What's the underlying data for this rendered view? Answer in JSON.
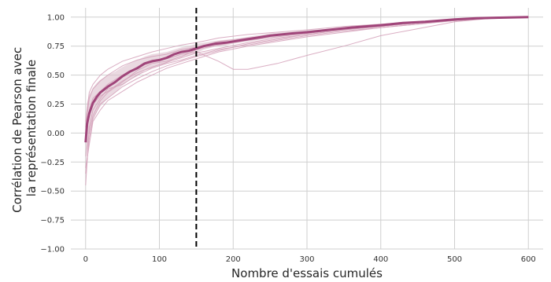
{
  "chart_data": {
    "type": "line",
    "title": "",
    "xlabel": "Nombre d'essais cumulés",
    "ylabel_lines": [
      "Corrélation de Pearson avec",
      "la représentation finale"
    ],
    "xlim": [
      -20,
      620
    ],
    "ylim": [
      -1.0,
      1.08
    ],
    "x_ticks": [
      0,
      100,
      200,
      300,
      400,
      500,
      600
    ],
    "x_tick_labels": [
      "0",
      "100",
      "200",
      "300",
      "400",
      "500",
      "600"
    ],
    "y_ticks": [
      1.0,
      0.75,
      0.5,
      0.25,
      0.0,
      -0.25,
      -0.5,
      -0.75,
      -1.0
    ],
    "y_tick_labels": [
      "1.00",
      "0.75",
      "0.50",
      "0.25",
      "0.00",
      "−0.25",
      "−0.50",
      "−0.75",
      "−1.00"
    ],
    "grid": true,
    "vline": {
      "x": 150,
      "style": "dashed",
      "color": "#000000"
    },
    "mean_color": "#a0457a",
    "individual_color": "#d4a0b8",
    "band_color": "#dcc0cd",
    "series": [
      {
        "role": "mean",
        "x": [
          0,
          2,
          5,
          10,
          15,
          20,
          30,
          40,
          50,
          60,
          70,
          80,
          90,
          100,
          110,
          120,
          130,
          140,
          150,
          160,
          175,
          190,
          200,
          220,
          250,
          280,
          300,
          330,
          360,
          400,
          430,
          460,
          500,
          530,
          560,
          600
        ],
        "y": [
          -0.08,
          0.08,
          0.17,
          0.26,
          0.31,
          0.35,
          0.4,
          0.44,
          0.49,
          0.53,
          0.56,
          0.6,
          0.62,
          0.63,
          0.65,
          0.68,
          0.7,
          0.71,
          0.73,
          0.75,
          0.77,
          0.78,
          0.79,
          0.81,
          0.84,
          0.86,
          0.87,
          0.89,
          0.91,
          0.93,
          0.95,
          0.96,
          0.98,
          0.99,
          0.995,
          1.0
        ]
      },
      {
        "role": "band",
        "x": [
          0,
          2,
          5,
          10,
          15,
          20,
          30,
          40,
          50,
          60,
          70,
          80,
          90,
          100,
          110,
          120,
          130,
          140,
          150,
          160,
          175,
          190,
          200,
          220,
          250,
          280,
          300,
          330,
          360,
          400,
          430,
          460,
          500,
          530,
          560,
          600
        ],
        "lower": [
          -0.28,
          -0.12,
          0.0,
          0.12,
          0.18,
          0.23,
          0.3,
          0.35,
          0.41,
          0.46,
          0.49,
          0.54,
          0.56,
          0.58,
          0.6,
          0.64,
          0.66,
          0.67,
          0.69,
          0.72,
          0.745,
          0.755,
          0.77,
          0.79,
          0.82,
          0.845,
          0.855,
          0.88,
          0.9,
          0.92,
          0.94,
          0.952,
          0.975,
          0.985,
          0.993,
          1.0
        ],
        "upper": [
          0.12,
          0.26,
          0.33,
          0.39,
          0.43,
          0.46,
          0.5,
          0.53,
          0.57,
          0.6,
          0.63,
          0.66,
          0.68,
          0.69,
          0.7,
          0.72,
          0.74,
          0.75,
          0.77,
          0.78,
          0.795,
          0.805,
          0.81,
          0.83,
          0.86,
          0.875,
          0.885,
          0.9,
          0.92,
          0.94,
          0.96,
          0.968,
          0.985,
          0.995,
          0.998,
          1.0
        ]
      },
      {
        "role": "individual",
        "x": [
          0,
          5,
          10,
          20,
          30,
          50,
          70,
          90,
          110,
          130,
          150,
          180,
          220,
          260,
          300,
          350,
          400,
          450,
          500,
          550,
          600
        ],
        "y": [
          -0.45,
          0.05,
          0.2,
          0.3,
          0.38,
          0.42,
          0.5,
          0.56,
          0.6,
          0.63,
          0.67,
          0.72,
          0.76,
          0.8,
          0.84,
          0.88,
          0.91,
          0.94,
          0.97,
          0.99,
          1.0
        ]
      },
      {
        "role": "individual",
        "x": [
          0,
          5,
          10,
          20,
          30,
          50,
          70,
          90,
          110,
          130,
          150,
          180,
          220,
          260,
          300,
          350,
          400,
          450,
          500,
          550,
          600
        ],
        "y": [
          0.05,
          0.3,
          0.38,
          0.45,
          0.5,
          0.58,
          0.63,
          0.66,
          0.68,
          0.72,
          0.74,
          0.79,
          0.82,
          0.85,
          0.87,
          0.9,
          0.93,
          0.95,
          0.98,
          0.99,
          1.0
        ]
      },
      {
        "role": "individual",
        "x": [
          0,
          5,
          10,
          20,
          30,
          50,
          70,
          90,
          110,
          130,
          150,
          180,
          220,
          260,
          300,
          350,
          400,
          450,
          500,
          550,
          600
        ],
        "y": [
          -0.3,
          -0.1,
          0.1,
          0.2,
          0.28,
          0.36,
          0.44,
          0.5,
          0.56,
          0.6,
          0.64,
          0.7,
          0.75,
          0.79,
          0.83,
          0.87,
          0.91,
          0.94,
          0.97,
          0.99,
          1.0
        ]
      },
      {
        "role": "individual",
        "x": [
          0,
          5,
          10,
          20,
          30,
          50,
          70,
          90,
          110,
          130,
          150,
          180,
          220,
          260,
          300,
          350,
          400,
          450,
          500,
          550,
          600
        ],
        "y": [
          0.1,
          0.35,
          0.42,
          0.5,
          0.55,
          0.62,
          0.66,
          0.7,
          0.73,
          0.76,
          0.78,
          0.82,
          0.85,
          0.87,
          0.89,
          0.92,
          0.94,
          0.96,
          0.98,
          0.99,
          1.0
        ]
      },
      {
        "role": "individual",
        "x": [
          0,
          5,
          10,
          20,
          30,
          50,
          70,
          90,
          110,
          130,
          150,
          180,
          220,
          260,
          300,
          350,
          400,
          450,
          500,
          550,
          600
        ],
        "y": [
          -0.05,
          0.15,
          0.25,
          0.32,
          0.36,
          0.45,
          0.52,
          0.57,
          0.61,
          0.65,
          0.69,
          0.73,
          0.78,
          0.82,
          0.85,
          0.89,
          0.92,
          0.95,
          0.97,
          0.99,
          1.0
        ]
      },
      {
        "role": "individual",
        "x": [
          0,
          5,
          10,
          20,
          30,
          50,
          70,
          90,
          110,
          130,
          150,
          180,
          220,
          260,
          300,
          350,
          400,
          450,
          500,
          550,
          600
        ],
        "y": [
          -0.2,
          0.0,
          0.15,
          0.28,
          0.35,
          0.44,
          0.54,
          0.6,
          0.62,
          0.66,
          0.72,
          0.76,
          0.8,
          0.83,
          0.86,
          0.9,
          0.93,
          0.95,
          0.98,
          0.99,
          1.0
        ]
      },
      {
        "role": "individual",
        "x": [
          0,
          5,
          10,
          20,
          30,
          50,
          70,
          90,
          110,
          130,
          150,
          180,
          200,
          220,
          260,
          300,
          350,
          400,
          450,
          500,
          550,
          600
        ],
        "y": [
          0.0,
          0.2,
          0.3,
          0.36,
          0.42,
          0.5,
          0.57,
          0.61,
          0.64,
          0.68,
          0.7,
          0.62,
          0.55,
          0.55,
          0.6,
          0.67,
          0.75,
          0.84,
          0.9,
          0.96,
          0.99,
          1.0
        ]
      },
      {
        "role": "individual",
        "x": [
          0,
          5,
          10,
          20,
          30,
          50,
          70,
          90,
          110,
          130,
          150,
          180,
          220,
          260,
          300,
          350,
          400,
          450,
          500,
          550,
          600
        ],
        "y": [
          -0.35,
          -0.05,
          0.12,
          0.25,
          0.3,
          0.4,
          0.47,
          0.53,
          0.58,
          0.62,
          0.66,
          0.71,
          0.77,
          0.81,
          0.85,
          0.89,
          0.92,
          0.95,
          0.97,
          0.99,
          1.0
        ]
      }
    ]
  }
}
